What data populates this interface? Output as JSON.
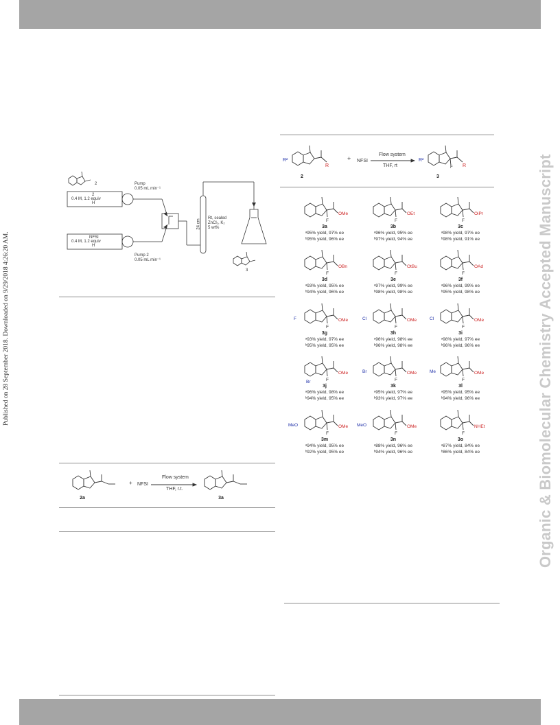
{
  "header_band_color": "#a5a5a5",
  "watermark": "Organic & Biomolecular Chemistry Accepted Manuscript",
  "published_note": "Published on 28 September 2018. Downloaded on 9/29/2018 4:26:20 AM.",
  "flow_diagram": {
    "feed1_cpd": "2",
    "feed1_line1": "2",
    "feed1_line2": "0.4 M, 1.2 equiv",
    "feed1_line3": "H",
    "feed2_line1": "NFSI",
    "feed2_line2": "0.4 M, 1.2 equiv",
    "feed2_line3": "H",
    "pump1_line1": "Pump",
    "pump1_line2": "0.05 mL min⁻¹",
    "pump2_line1": "Pump 2",
    "pump2_line2": "0.05 mL min⁻¹",
    "reactor_label": "24 cm",
    "reactor_desc1": "Rt, sealed",
    "reactor_desc2": "ZnCl₂, K₂",
    "reactor_desc3": "5 wt%",
    "product_cpd": "3"
  },
  "scheme_small": {
    "reagent": "NFSI",
    "plus": "+",
    "arrow_top": "Flow system",
    "arrow_bottom": "THF, r.t.",
    "sm_label": "2a",
    "product_label": "3a"
  },
  "scheme_main": {
    "reagent": "NFSI",
    "plus": "+",
    "arrow_top": "Flow system",
    "arrow_bottom": "THF, rt",
    "sm_label": "2",
    "product_label": "3",
    "r1": "R",
    "r2": "R"
  },
  "entries": [
    {
      "id": "3a",
      "group": "OMe",
      "sub": "",
      "y1": "ᵃ95% yield, 97% ee",
      "y2": "ᵇ95% yield, 96% ee"
    },
    {
      "id": "3b",
      "group": "OEt",
      "sub": "",
      "y1": "ᵃ96% yield, 95% ee",
      "y2": "ᵇ97% yield, 94% ee"
    },
    {
      "id": "3c",
      "group": "OiPr",
      "sub": "",
      "y1": "ᵃ98% yield, 97% ee",
      "y2": "ᵇ98% yield, 91% ee"
    },
    {
      "id": "3d",
      "group": "OBn",
      "sub": "",
      "y1": "ᵃ93% yield, 95% ee",
      "y2": "ᵇ94% yield, 96% ee"
    },
    {
      "id": "3e",
      "group": "OtBu",
      "sub": "",
      "y1": "ᵃ97% yield, 99% ee",
      "y2": "ᵇ98% yield, 98% ee"
    },
    {
      "id": "3f",
      "group": "OAd",
      "sub": "",
      "y1": "ᵃ96% yield, 99% ee",
      "y2": "ᵇ95% yield, 98% ee"
    },
    {
      "id": "3g",
      "group": "OMe",
      "sub": "F",
      "y1": "ᵃ93% yield, 97% ee",
      "y2": "ᵇ95% yield, 95% ee"
    },
    {
      "id": "3h",
      "group": "OMe",
      "sub": "Cl",
      "y1": "ᵃ96% yield, 98% ee",
      "y2": "ᵇ96% yield, 98% ee"
    },
    {
      "id": "3i",
      "group": "OMe",
      "sub": "Cl",
      "y1": "ᵃ98% yield, 97% ee",
      "y2": "ᵇ96% yield, 96% ee"
    },
    {
      "id": "3j",
      "group": "OMe",
      "sub": "Br",
      "y1": "ᵃ96% yield, 98% ee",
      "y2": "ᵇ94% yield, 95% ee"
    },
    {
      "id": "3k",
      "group": "OMe",
      "sub": "Br",
      "y1": "ᵃ95% yield, 97% ee",
      "y2": "ᵇ93% yield, 97% ee"
    },
    {
      "id": "3l",
      "group": "OMe",
      "sub": "Me",
      "y1": "ᵃ95% yield, 95% ee",
      "y2": "ᵇ94% yield, 96% ee"
    },
    {
      "id": "3m",
      "group": "OMe",
      "sub": "MeO",
      "y1": "ᵃ94% yield, 95% ee",
      "y2": "ᵇ92% yield, 95% ee"
    },
    {
      "id": "3n",
      "group": "OMe",
      "sub": "MeO",
      "y1": "ᵃ88% yield, 96% ee",
      "y2": "ᵇ94% yield, 96% ee"
    },
    {
      "id": "3o",
      "group": "NHEt",
      "sub": "",
      "y1": "ᵃ87% yield, 84% ee",
      "y2": "ᵇ86% yield, 84% ee"
    }
  ],
  "colors": {
    "red": "#cc2222",
    "blue": "#2233aa"
  }
}
